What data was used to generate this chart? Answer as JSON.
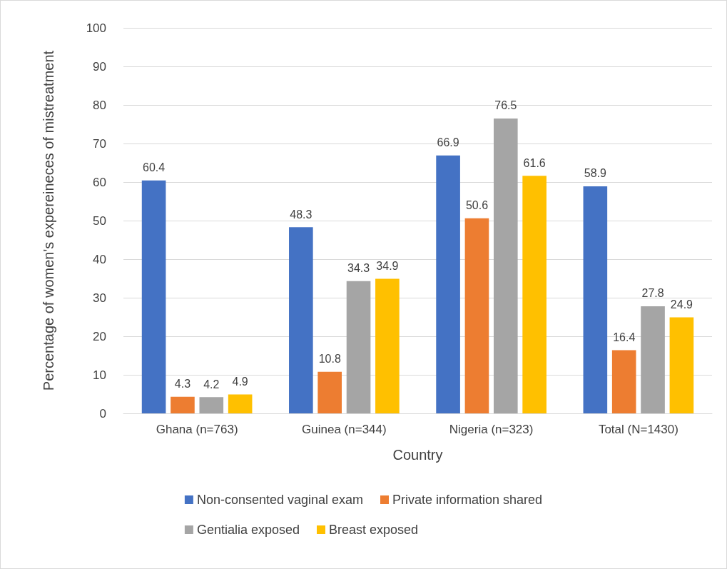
{
  "chart_data": {
    "type": "bar",
    "xlabel": "Country",
    "ylabel": "Percentage of women's expereineces of mistreatment",
    "categories": [
      "Ghana (n=763)",
      "Guinea (n=344)",
      "Nigeria (n=323)",
      "Total (N=1430)"
    ],
    "series": [
      {
        "name": "Non-consented vaginal exam",
        "color": "#4472c4",
        "values": [
          60.4,
          48.3,
          66.9,
          58.9
        ]
      },
      {
        "name": "Private information shared",
        "color": "#ed7d31",
        "values": [
          4.3,
          10.8,
          50.6,
          16.4
        ]
      },
      {
        "name": "Gentialia exposed",
        "color": "#a5a5a5",
        "values": [
          4.2,
          34.3,
          76.5,
          27.8
        ]
      },
      {
        "name": "Breast exposed",
        "color": "#ffc000",
        "values": [
          4.9,
          34.9,
          61.6,
          24.9
        ]
      }
    ],
    "ylim": [
      0,
      100
    ],
    "yticks": [
      0,
      10,
      20,
      30,
      40,
      50,
      60,
      70,
      80,
      90,
      100
    ],
    "grid": "y",
    "legend": "bottom",
    "data_labels": true
  }
}
